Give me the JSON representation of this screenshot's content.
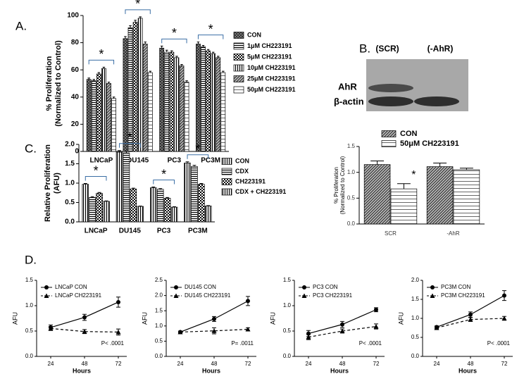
{
  "panel_labels": [
    "A.",
    "B.",
    "C.",
    "D."
  ],
  "blot": {
    "lanes": [
      "(SCR)",
      "(-AhR)"
    ],
    "rows": [
      "AhR",
      "β-actin"
    ]
  },
  "chart_data": [
    {
      "type": "bar",
      "ylabel": [
        "% Proliferation",
        "(Normalized to Control)"
      ],
      "categories": [
        "LNCaP",
        "DU145",
        "PC3",
        "PC3M"
      ],
      "ylim": [
        0,
        100
      ],
      "yticks": [
        0,
        20,
        40,
        60,
        80,
        100
      ],
      "annotations": [
        "*",
        "*",
        "*",
        "*"
      ],
      "series": [
        {
          "name": "CON",
          "pattern": "crosshatch",
          "values": [
            53,
            83,
            76,
            79
          ],
          "errors": [
            1,
            1.5,
            1.5,
            1.5
          ]
        },
        {
          "name": "1μM CH223191",
          "pattern": "hstripe",
          "values": [
            52,
            91,
            73,
            77
          ],
          "errors": [
            1,
            1.5,
            1.5,
            1
          ]
        },
        {
          "name": "5μM CH223191",
          "pattern": "checker",
          "values": [
            57,
            95,
            73,
            74
          ],
          "errors": [
            1,
            1.5,
            1,
            1
          ]
        },
        {
          "name": "10μM CH223191",
          "pattern": "vstripe",
          "values": [
            61,
            98,
            69,
            72
          ],
          "errors": [
            1,
            1,
            1,
            1
          ]
        },
        {
          "name": "25μM CH223191",
          "pattern": "diagonal",
          "values": [
            50,
            79,
            63,
            69
          ],
          "errors": [
            1,
            1.5,
            1,
            1
          ]
        },
        {
          "name": "50μM CH223191",
          "pattern": "hline",
          "values": [
            39,
            58,
            51,
            58
          ],
          "errors": [
            1,
            1,
            1,
            1
          ]
        }
      ]
    },
    {
      "type": "bar",
      "ylabel": [
        "Relative Proliferation",
        "(AFU)"
      ],
      "categories": [
        "LNCaP",
        "DU145",
        "PC3",
        "PC3M"
      ],
      "ylim": [
        0,
        2
      ],
      "yticks": [
        {
          "value": 0,
          "label": "0.0"
        },
        0.5,
        {
          "value": 1,
          "label": "1.0"
        },
        1.5,
        {
          "value": 2,
          "label": "2.0"
        }
      ],
      "annotations": [
        "*",
        "*",
        "*",
        "*"
      ],
      "series": [
        {
          "name": "CON",
          "pattern": "vstripe",
          "values": [
            0.97,
            1.8,
            0.88,
            1.52
          ],
          "errors": [
            0.02,
            0.04,
            0.02,
            0.03
          ]
        },
        {
          "name": "CDX",
          "pattern": "hstripe",
          "values": [
            0.63,
            1.78,
            0.84,
            1.43
          ],
          "errors": [
            0.02,
            0.04,
            0.02,
            0.03
          ]
        },
        {
          "name": "CH223191",
          "pattern": "checker",
          "values": [
            0.74,
            0.85,
            0.61,
            0.97
          ],
          "errors": [
            0.02,
            0.02,
            0.02,
            0.02
          ]
        },
        {
          "name": "CDX + CH223191",
          "pattern": "vstripe",
          "values": [
            0.53,
            0.4,
            0.38,
            0.41
          ],
          "errors": [
            0.01,
            0.01,
            0.01,
            0.01
          ]
        }
      ]
    },
    {
      "type": "bar",
      "ylabel": [
        "% Proliferation",
        "(Normalized to Control)"
      ],
      "categories": [
        "SCR",
        "-AhR"
      ],
      "ylim": [
        0,
        1.5
      ],
      "yticks": [
        {
          "value": 0,
          "label": "0.0"
        },
        0.5,
        {
          "value": 1,
          "label": "1.0"
        },
        1.5
      ],
      "annotations": [
        "*"
      ],
      "series": [
        {
          "name": "CON",
          "pattern": "diagonal",
          "values": [
            1.15,
            1.11
          ],
          "errors": [
            0.07,
            0.07
          ]
        },
        {
          "name": "50μM CH223191",
          "pattern": "hline",
          "values": [
            0.68,
            1.05
          ],
          "errors": [
            0.1,
            0.03
          ]
        }
      ]
    },
    {
      "type": "line",
      "xlabel": "Hours",
      "ylabel": "AFU",
      "x": [
        24,
        48,
        72
      ],
      "xlim": [
        14,
        78
      ],
      "xticks": [
        24,
        48,
        72
      ],
      "ylim": [
        0,
        1.5
      ],
      "yticks": [
        {
          "value": 0,
          "label": "0.0"
        },
        0.5,
        {
          "value": 1,
          "label": "1.0"
        },
        1.5
      ],
      "annotation": "P< .0001",
      "series": [
        {
          "name": "LNCaP CON",
          "marker": "circle",
          "dash": "solid",
          "values": [
            0.57,
            0.77,
            1.07
          ],
          "errors": [
            0.05,
            0.06,
            0.1
          ]
        },
        {
          "name": "LNCaP CH223191",
          "marker": "triangle",
          "dash": "dashed",
          "values": [
            0.55,
            0.49,
            0.48
          ],
          "errors": [
            0.04,
            0.04,
            0.06
          ]
        }
      ]
    },
    {
      "type": "line",
      "xlabel": "Hours",
      "ylabel": "AFU",
      "x": [
        24,
        48,
        72
      ],
      "xlim": [
        14,
        78
      ],
      "xticks": [
        24,
        48,
        72
      ],
      "ylim": [
        0,
        2.5
      ],
      "yticks": [
        {
          "value": 0,
          "label": "0.0"
        },
        0.5,
        {
          "value": 1,
          "label": "1.0"
        },
        1.5,
        {
          "value": 2,
          "label": "2.0"
        },
        2.5
      ],
      "annotation": "P= .0011",
      "series": [
        {
          "name": "DU145 CON",
          "marker": "circle",
          "dash": "solid",
          "values": [
            0.8,
            1.23,
            1.82
          ],
          "errors": [
            0.03,
            0.08,
            0.15
          ]
        },
        {
          "name": "DU145 CH223191",
          "marker": "triangle",
          "dash": "dashed",
          "values": [
            0.8,
            0.84,
            0.89
          ],
          "errors": [
            0.03,
            0.1,
            0.05
          ]
        }
      ]
    },
    {
      "type": "line",
      "xlabel": "Hours",
      "ylabel": "AFU",
      "x": [
        24,
        48,
        72
      ],
      "xlim": [
        14,
        78
      ],
      "xticks": [
        24,
        48,
        72
      ],
      "ylim": [
        0,
        1.5
      ],
      "yticks": [
        {
          "value": 0,
          "label": "0.0"
        },
        0.5,
        {
          "value": 1,
          "label": "1.0"
        },
        1.5
      ],
      "annotation": "P< .0001",
      "series": [
        {
          "name": "PC3 CON",
          "marker": "circle",
          "dash": "solid",
          "values": [
            0.45,
            0.63,
            0.92
          ],
          "errors": [
            0.06,
            0.06,
            0.04
          ]
        },
        {
          "name": "PC3 CH223191",
          "marker": "triangle",
          "dash": "dashed",
          "values": [
            0.38,
            0.5,
            0.59
          ],
          "errors": [
            0.05,
            0.04,
            0.05
          ]
        }
      ]
    },
    {
      "type": "line",
      "xlabel": "Hours",
      "ylabel": "AFU",
      "x": [
        24,
        48,
        72
      ],
      "xlim": [
        14,
        78
      ],
      "xticks": [
        24,
        48,
        72
      ],
      "ylim": [
        0,
        2
      ],
      "yticks": [
        {
          "value": 0,
          "label": "0.0"
        },
        0.5,
        {
          "value": 1,
          "label": "1.0"
        },
        1.5,
        {
          "value": 2,
          "label": "2.0"
        }
      ],
      "annotation": "P< .0001",
      "series": [
        {
          "name": "PC3M CON",
          "marker": "circle",
          "dash": "solid",
          "values": [
            0.77,
            1.1,
            1.6
          ],
          "errors": [
            0.03,
            0.07,
            0.13
          ]
        },
        {
          "name": "PC3M CH223191",
          "marker": "triangle",
          "dash": "dashed",
          "values": [
            0.75,
            0.97,
            1.0
          ],
          "errors": [
            0.03,
            0.05,
            0.05
          ]
        }
      ]
    }
  ]
}
